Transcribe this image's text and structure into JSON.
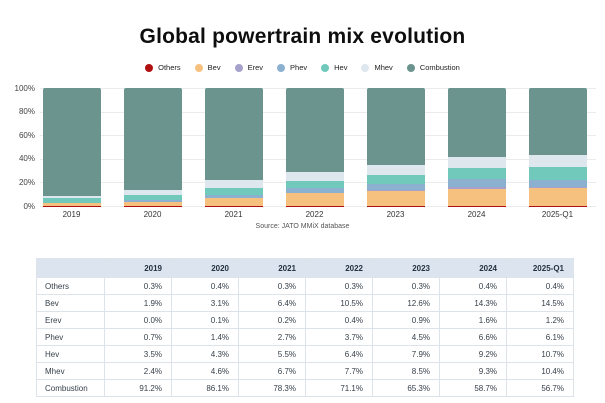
{
  "title": "Global powertrain mix evolution",
  "source": "Source: JATO MMiX database",
  "chart_data": {
    "type": "bar",
    "stacked": true,
    "percent_stack": true,
    "title": "Global powertrain mix evolution",
    "categories": [
      "2019",
      "2020",
      "2021",
      "2022",
      "2023",
      "2024",
      "2025-Q1"
    ],
    "series": [
      {
        "name": "Others",
        "color": "#b11010",
        "values": [
          0.3,
          0.4,
          0.3,
          0.3,
          0.3,
          0.4,
          0.4
        ]
      },
      {
        "name": "Bev",
        "color": "#f6c17f",
        "values": [
          1.9,
          3.1,
          6.4,
          10.5,
          12.6,
          14.3,
          14.5
        ]
      },
      {
        "name": "Erev",
        "color": "#a5a1cb",
        "values": [
          0.0,
          0.1,
          0.2,
          0.4,
          0.9,
          1.6,
          1.2
        ]
      },
      {
        "name": "Phev",
        "color": "#8cb0d0",
        "values": [
          0.7,
          1.4,
          2.7,
          3.7,
          4.5,
          6.6,
          6.1
        ]
      },
      {
        "name": "Hev",
        "color": "#70c9bb",
        "values": [
          3.5,
          4.3,
          5.5,
          6.4,
          7.9,
          9.2,
          10.7
        ]
      },
      {
        "name": "Mhev",
        "color": "#dee6ee",
        "values": [
          2.4,
          4.6,
          6.7,
          7.7,
          8.5,
          9.3,
          10.4
        ]
      },
      {
        "name": "Combustion",
        "color": "#6b948f",
        "values": [
          91.2,
          86.1,
          78.3,
          71.1,
          65.3,
          58.7,
          56.7
        ]
      }
    ],
    "y_tick_labels": [
      "0%",
      "20%",
      "40%",
      "60%",
      "80%",
      "100%"
    ],
    "y_tick_values": [
      0,
      20,
      40,
      60,
      80,
      100
    ],
    "ylim": [
      0,
      100
    ],
    "grid": true,
    "legend_position": "top"
  },
  "table": {
    "header": [
      "",
      "2019",
      "2020",
      "2021",
      "2022",
      "2023",
      "2024",
      "2025-Q1"
    ],
    "rows": [
      {
        "label": "Others",
        "values": [
          "0.3%",
          "0.4%",
          "0.3%",
          "0.3%",
          "0.3%",
          "0.4%",
          "0.4%"
        ]
      },
      {
        "label": "Bev",
        "values": [
          "1.9%",
          "3.1%",
          "6.4%",
          "10.5%",
          "12.6%",
          "14.3%",
          "14.5%"
        ]
      },
      {
        "label": "Erev",
        "values": [
          "0.0%",
          "0.1%",
          "0.2%",
          "0.4%",
          "0.9%",
          "1.6%",
          "1.2%"
        ]
      },
      {
        "label": "Phev",
        "values": [
          "0.7%",
          "1.4%",
          "2.7%",
          "3.7%",
          "4.5%",
          "6.6%",
          "6.1%"
        ]
      },
      {
        "label": "Hev",
        "values": [
          "3.5%",
          "4.3%",
          "5.5%",
          "6.4%",
          "7.9%",
          "9.2%",
          "10.7%"
        ]
      },
      {
        "label": "Mhev",
        "values": [
          "2.4%",
          "4.6%",
          "6.7%",
          "7.7%",
          "8.5%",
          "9.3%",
          "10.4%"
        ]
      },
      {
        "label": "Combustion",
        "values": [
          "91.2%",
          "86.1%",
          "78.3%",
          "71.1%",
          "65.3%",
          "58.7%",
          "56.7%"
        ]
      }
    ]
  },
  "colors": {
    "header_bg": "#dce5ef",
    "grid": "#ebebeb",
    "text": "#333333"
  }
}
